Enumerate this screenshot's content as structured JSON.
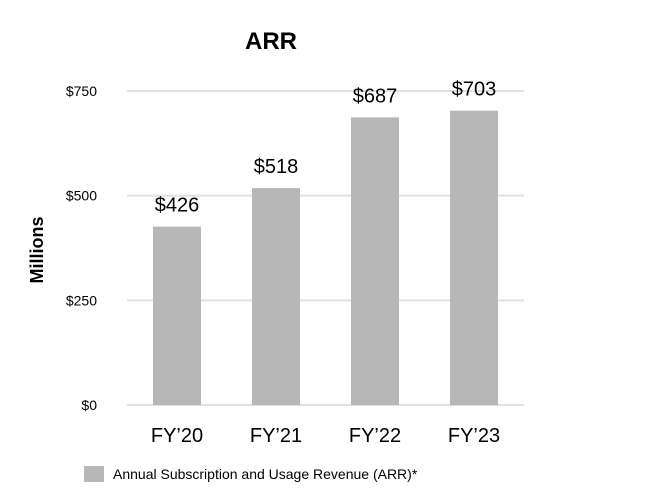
{
  "chart_data": {
    "type": "bar",
    "title": "ARR",
    "ylabel": "Millions",
    "xlabel": "",
    "categories": [
      "FY’20",
      "FY’21",
      "FY’22",
      "FY’23"
    ],
    "series": [
      {
        "name": "Annual Subscription and Usage Revenue (ARR)*",
        "values": [
          426,
          518,
          687,
          703
        ],
        "labels": [
          "$426",
          "$518",
          "$687",
          "$703"
        ],
        "color": "#b7b7b7"
      }
    ],
    "ylim": [
      0,
      750
    ],
    "yticks": [
      0,
      250,
      500,
      750
    ],
    "ytick_labels": [
      "$0",
      "$250",
      "$500",
      "$750"
    ],
    "grid": true,
    "gridline_color": "#e0e0e0",
    "legend_position": "bottom-left"
  }
}
